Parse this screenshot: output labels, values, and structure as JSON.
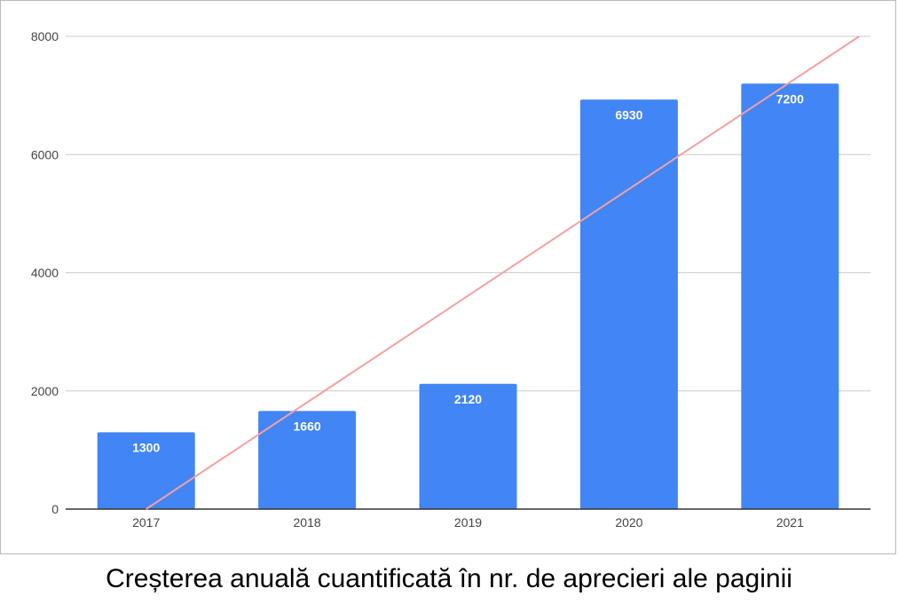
{
  "caption": "Creșterea anuală cuantificată în nr. de aprecieri ale paginii",
  "chart_data": {
    "type": "bar",
    "categories": [
      "2017",
      "2018",
      "2019",
      "2020",
      "2021"
    ],
    "values": [
      1300,
      1660,
      2120,
      6930,
      7200
    ],
    "data_labels": [
      "1300",
      "1660",
      "2120",
      "6930",
      "7200"
    ],
    "yticks": [
      0,
      2000,
      4000,
      6000,
      8000
    ],
    "ylim": [
      0,
      8000
    ],
    "grid": true,
    "bar_color": "#4285f4",
    "trendline": {
      "color": "#f4a0a0",
      "start": [
        2017,
        0
      ],
      "end": [
        2021.43,
        8000
      ]
    },
    "title": "",
    "xlabel": "",
    "ylabel": ""
  }
}
